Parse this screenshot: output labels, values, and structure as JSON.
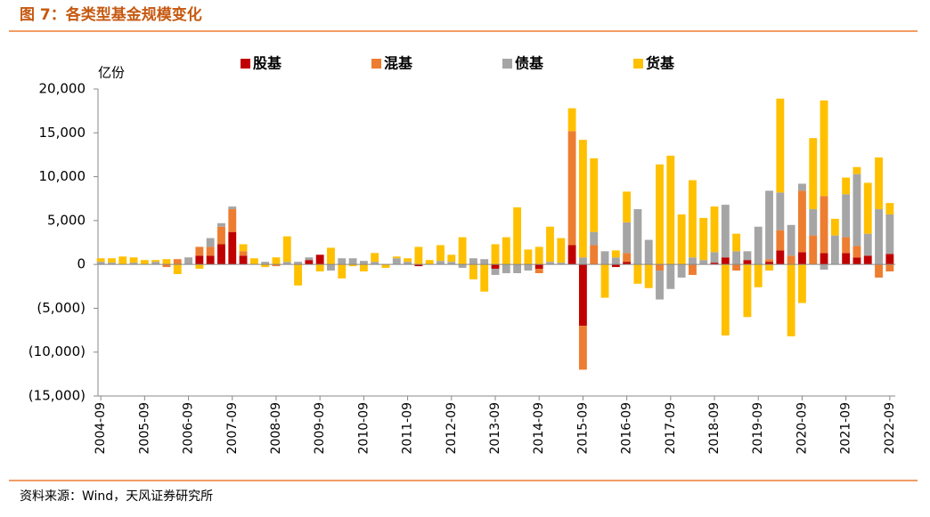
{
  "chart_data": {
    "type": "bar",
    "stacked": true,
    "title": "图 7：各类型基金规模变化",
    "y_label": "亿份",
    "source": "资料来源：Wind，天风证券研究所",
    "categories": [
      "2004-09",
      null,
      null,
      null,
      "2005-09",
      null,
      null,
      null,
      "2006-09",
      null,
      null,
      null,
      "2007-09",
      null,
      null,
      null,
      "2008-09",
      null,
      null,
      null,
      "2009-09",
      null,
      null,
      null,
      "2010-09",
      null,
      null,
      null,
      "2011-09",
      null,
      null,
      null,
      "2012-09",
      null,
      null,
      null,
      "2013-09",
      null,
      null,
      null,
      "2014-09",
      null,
      null,
      null,
      "2015-09",
      null,
      null,
      null,
      "2016-09",
      null,
      null,
      null,
      "2017-09",
      null,
      null,
      null,
      "2018-09",
      null,
      null,
      null,
      "2019-09",
      null,
      null,
      null,
      "2020-09",
      null,
      null,
      null,
      "2021-09",
      null,
      null,
      null,
      "2022-09"
    ],
    "series": [
      {
        "name": "股基",
        "color": "#c00000",
        "values": [
          0,
          0,
          0,
          0,
          0,
          0,
          0,
          0,
          0,
          1000,
          1000,
          2300,
          3700,
          1000,
          0,
          0,
          0,
          0,
          0,
          500,
          1100,
          0,
          0,
          0,
          0,
          0,
          0,
          0,
          0,
          -200,
          0,
          0,
          0,
          0,
          0,
          0,
          -500,
          0,
          0,
          0,
          -500,
          0,
          0,
          2200,
          -7000,
          0,
          0,
          -300,
          300,
          0,
          0,
          0,
          0,
          0,
          0,
          0,
          200,
          800,
          0,
          500,
          0,
          300,
          1600,
          0,
          1400,
          0,
          1300,
          0,
          1300,
          800,
          1000,
          0,
          1200
        ]
      },
      {
        "name": "混基",
        "color": "#ed7d31",
        "values": [
          0,
          0,
          0,
          0,
          0,
          0,
          -300,
          600,
          0,
          1000,
          1000,
          2000,
          2600,
          500,
          0,
          0,
          -200,
          0,
          0,
          0,
          0,
          0,
          0,
          0,
          0,
          0,
          0,
          0,
          0,
          0,
          0,
          0,
          0,
          0,
          0,
          0,
          0,
          0,
          0,
          0,
          -500,
          0,
          0,
          13000,
          -5000,
          2200,
          0,
          0,
          1000,
          0,
          0,
          -700,
          0,
          0,
          -1200,
          0,
          0,
          0,
          -700,
          0,
          0,
          300,
          2300,
          1000,
          7000,
          3300,
          6500,
          0,
          1800,
          1300,
          0,
          -1500,
          -800
        ]
      },
      {
        "name": "债基",
        "color": "#a5a5a5",
        "values": [
          300,
          200,
          0,
          200,
          0,
          300,
          0,
          0,
          800,
          0,
          1000,
          400,
          300,
          0,
          0,
          300,
          0,
          300,
          300,
          300,
          0,
          -700,
          700,
          700,
          400,
          300,
          0,
          700,
          300,
          0,
          0,
          400,
          300,
          -400,
          700,
          600,
          -700,
          -1000,
          -1000,
          -700,
          0,
          300,
          200,
          0,
          800,
          1500,
          1500,
          800,
          3500,
          6300,
          2800,
          -3300,
          -2800,
          -1500,
          800,
          500,
          1200,
          6000,
          1500,
          1000,
          4300,
          7800,
          4300,
          3500,
          800,
          3000,
          -600,
          3300,
          4900,
          8200,
          2500,
          6300,
          4500
        ]
      },
      {
        "name": "货基",
        "color": "#ffc000",
        "values": [
          400,
          500,
          900,
          600,
          500,
          200,
          600,
          -1100,
          0,
          -500,
          0,
          0,
          0,
          800,
          700,
          -300,
          800,
          2900,
          -2400,
          0,
          -800,
          1900,
          -1600,
          -200,
          -800,
          1000,
          -400,
          200,
          400,
          2000,
          500,
          1800,
          800,
          3100,
          -1700,
          -3100,
          2300,
          3100,
          6500,
          1700,
          2000,
          4000,
          2800,
          2600,
          13400,
          8400,
          -3800,
          800,
          3500,
          -2200,
          -2700,
          11400,
          12400,
          5700,
          8800,
          4800,
          5200,
          -8100,
          2000,
          -6000,
          -2600,
          -700,
          10700,
          -8200,
          -4400,
          8100,
          10900,
          1900,
          1900,
          800,
          5800,
          5900,
          1300
        ]
      }
    ],
    "ylim": [
      -15000,
      20000
    ],
    "yticks": [
      {
        "value": -15000,
        "label": "(15,000)"
      },
      {
        "value": -10000,
        "label": "(10,000)"
      },
      {
        "value": -5000,
        "label": "(5,000)"
      },
      0,
      {
        "value": 5000,
        "label": "5,000"
      },
      {
        "value": 10000,
        "label": "10,000"
      },
      {
        "value": 15000,
        "label": "15,000"
      },
      {
        "value": 20000,
        "label": "20,000"
      }
    ],
    "grid": false,
    "legend": "top"
  }
}
